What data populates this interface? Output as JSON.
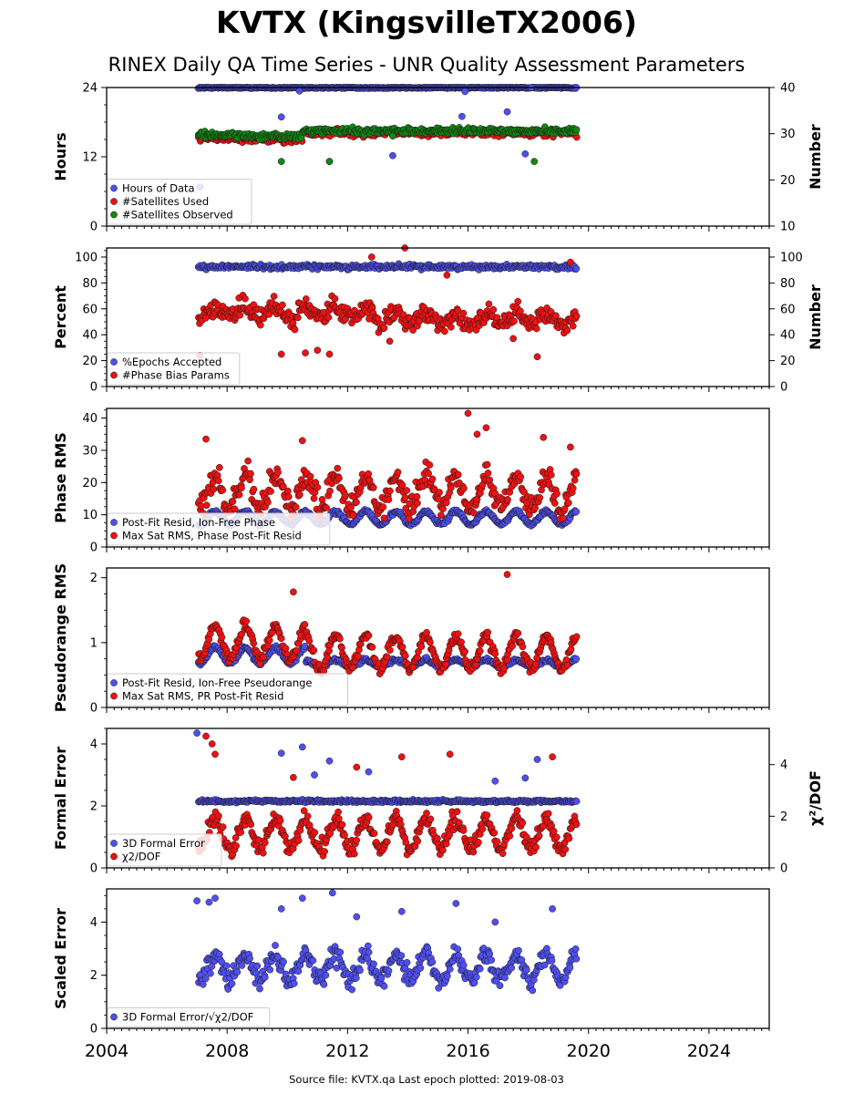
{
  "title": "KVTX (KingsvilleTX2006)",
  "subtitle": "RINEX Daily QA Time Series - UNR Quality Assessment Parameters",
  "footer": "Source file: KVTX.qa Last epoch plotted: 2019-08-03",
  "colors": {
    "blue": "#4f4ff0",
    "red": "#ee1111",
    "green": "#118811",
    "edge": "#1a1a1a"
  },
  "chart_data": [
    {
      "type": "scatter",
      "ylabel": "Hours",
      "ylabel_right": "Number",
      "xlim": [
        2004,
        2026
      ],
      "ylim": [
        0,
        24
      ],
      "ylim_right": [
        10,
        40
      ],
      "yticks": [
        0,
        12,
        24
      ],
      "yticks_right": [
        10,
        20,
        30,
        40
      ],
      "legend": "lower-left",
      "series": [
        {
          "name": "Hours of Data",
          "color": "blue",
          "axis": "left",
          "points": [
            [
              2007.1,
              6.8
            ],
            [
              2009.8,
              18.9
            ],
            [
              2010.4,
              23.4
            ],
            [
              2011.4,
              11.2
            ],
            [
              2013.5,
              12.2
            ],
            [
              2015.9,
              23.3
            ],
            [
              2015.8,
              19.0
            ],
            [
              2017.3,
              19.8
            ],
            [
              2017.9,
              12.5
            ],
            [
              2018.1,
              24.0
            ]
          ]
        },
        {
          "name": "#Satellites Used",
          "color": "red",
          "axis": "left",
          "points": []
        },
        {
          "name": "#Satellites Observed",
          "color": "green",
          "axis": "right",
          "points": [
            [
              2009.8,
              24.0
            ],
            [
              2011.4,
              24.0
            ],
            [
              2013.5,
              29.5
            ],
            [
              2018.2,
              24.0
            ]
          ]
        }
      ]
    },
    {
      "type": "scatter",
      "ylabel": "Percent",
      "ylabel_right": "Number",
      "xlim": [
        2004,
        2026
      ],
      "ylim": [
        0,
        107
      ],
      "ylim_right": [
        0,
        107
      ],
      "yticks": [
        0,
        20,
        40,
        60,
        80,
        100
      ],
      "yticks_right": [
        0,
        20,
        40,
        60,
        80,
        100
      ],
      "legend": "lower-left",
      "series": [
        {
          "name": "%Epochs Accepted",
          "color": "blue",
          "axis": "left",
          "points": []
        },
        {
          "name": "#Phase Bias Params",
          "color": "red",
          "axis": "right",
          "points": [
            [
              2007.1,
              24
            ],
            [
              2009.8,
              25
            ],
            [
              2010.6,
              26
            ],
            [
              2011.0,
              28
            ],
            [
              2011.4,
              25
            ],
            [
              2012.8,
              100
            ],
            [
              2013.4,
              35
            ],
            [
              2013.9,
              107
            ],
            [
              2015.3,
              86
            ],
            [
              2017.5,
              37
            ],
            [
              2018.3,
              23
            ],
            [
              2019.4,
              96
            ]
          ]
        }
      ]
    },
    {
      "type": "scatter",
      "ylabel": "Phase RMS",
      "xlim": [
        2004,
        2026
      ],
      "ylim": [
        0,
        43
      ],
      "yticks": [
        0,
        10,
        20,
        30,
        40
      ],
      "legend": "lower-left",
      "series": [
        {
          "name": "Post-Fit Resid, Ion-Free Phase",
          "color": "blue",
          "points": []
        },
        {
          "name": "Max Sat RMS, Phase Post-Fit Resid",
          "color": "red",
          "points": [
            [
              2007.3,
              33.5
            ],
            [
              2010.5,
              33.0
            ],
            [
              2016.0,
              41.5
            ],
            [
              2016.6,
              37.0
            ],
            [
              2016.3,
              35.0
            ],
            [
              2018.5,
              34.0
            ],
            [
              2019.4,
              31.0
            ]
          ]
        }
      ]
    },
    {
      "type": "scatter",
      "ylabel": "Pseudorange RMS",
      "xlim": [
        2004,
        2026
      ],
      "ylim": [
        0,
        2.15
      ],
      "yticks": [
        0,
        1,
        2
      ],
      "legend": "lower-left",
      "series": [
        {
          "name": "Post-Fit Resid, Ion-Free Pseudorange",
          "color": "blue",
          "points": []
        },
        {
          "name": "Max Sat RMS, PR Post-Fit Resid",
          "color": "red",
          "points": [
            [
              2010.2,
              1.78
            ],
            [
              2017.3,
              2.05
            ]
          ]
        }
      ]
    },
    {
      "type": "scatter",
      "ylabel": "Formal Error",
      "ylabel_right": "χ²/DOF",
      "xlim": [
        2004,
        2026
      ],
      "ylim": [
        0,
        4.5
      ],
      "ylim_right": [
        0,
        5.4
      ],
      "yticks": [
        0,
        2,
        4
      ],
      "yticks_right": [
        0,
        2,
        4
      ],
      "legend": "lower-left",
      "series": [
        {
          "name": "3D Formal Error",
          "color": "blue",
          "axis": "left",
          "points": [
            [
              2007.0,
              4.35
            ],
            [
              2009.8,
              3.7
            ],
            [
              2010.5,
              3.9
            ],
            [
              2011.4,
              3.45
            ],
            [
              2010.9,
              3.0
            ],
            [
              2012.7,
              3.1
            ],
            [
              2016.9,
              2.8
            ],
            [
              2017.9,
              2.9
            ],
            [
              2018.3,
              3.5
            ]
          ]
        },
        {
          "name": "χ2/DOF",
          "color": "red",
          "axis": "right",
          "points": [
            [
              2007.3,
              5.1
            ],
            [
              2007.5,
              4.8
            ],
            [
              2007.6,
              4.4
            ],
            [
              2012.3,
              3.9
            ],
            [
              2013.8,
              4.3
            ],
            [
              2015.4,
              4.4
            ],
            [
              2018.8,
              4.3
            ],
            [
              2010.2,
              3.5
            ]
          ]
        }
      ]
    },
    {
      "type": "scatter",
      "ylabel": "Scaled Error",
      "xlim": [
        2004,
        2026
      ],
      "ylim": [
        0,
        5.25
      ],
      "yticks": [
        0,
        2,
        4
      ],
      "xticks": [
        2004,
        2008,
        2012,
        2016,
        2020,
        2024
      ],
      "legend": "lower-left",
      "series": [
        {
          "name": "3D Formal Error/√χ2/DOF",
          "color": "blue",
          "points": [
            [
              2007.0,
              4.8
            ],
            [
              2007.4,
              4.75
            ],
            [
              2007.6,
              4.9
            ],
            [
              2009.8,
              4.5
            ],
            [
              2010.5,
              4.9
            ],
            [
              2011.5,
              5.1
            ],
            [
              2013.8,
              4.4
            ],
            [
              2015.6,
              4.7
            ],
            [
              2018.8,
              4.5
            ],
            [
              2016.9,
              4.0
            ],
            [
              2012.3,
              4.2
            ]
          ]
        }
      ]
    }
  ]
}
